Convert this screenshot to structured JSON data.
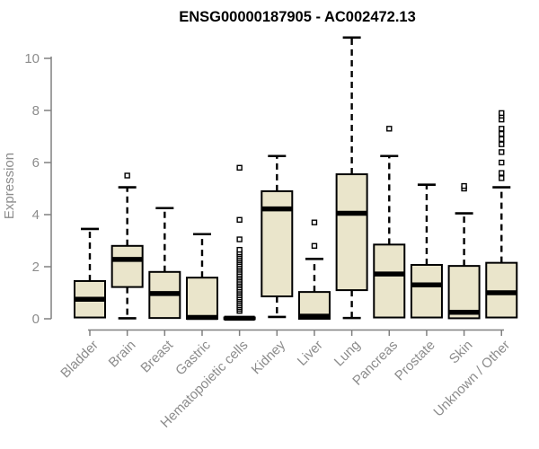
{
  "title": "ENSG00000187905 - AC002472.13",
  "colors": {
    "box_fill": "#eae5cb",
    "box_line": "#000000",
    "axis": "#808080",
    "axis_text": "#8c8c8c",
    "background": "#ffffff",
    "title_text": "#000000"
  },
  "chart_data": {
    "type": "boxplot",
    "title": "ENSG00000187905 - AC002472.13",
    "xlabel": "",
    "ylabel": "Expression",
    "ylim": [
      0,
      10.8
    ],
    "y_ticks": [
      0,
      2,
      4,
      6,
      8,
      10
    ],
    "grid": "off",
    "legend": "none",
    "categories": [
      "Bladder",
      "Brain",
      "Breast",
      "Gastric",
      "Hematopoietic cells",
      "Kidney",
      "Liver",
      "Lung",
      "Pancreas",
      "Prostate",
      "Skin",
      "Unknown / Other"
    ],
    "series": [
      {
        "name": "Bladder",
        "min": 0,
        "q1": 0.05,
        "median": 0.75,
        "q3": 1.45,
        "max": 3.45,
        "outliers": []
      },
      {
        "name": "Brain",
        "min": 0.02,
        "q1": 1.22,
        "median": 2.28,
        "q3": 2.8,
        "max": 5.05,
        "outliers": [
          5.5
        ]
      },
      {
        "name": "Breast",
        "min": 0,
        "q1": 0.03,
        "median": 0.97,
        "q3": 1.8,
        "max": 4.25,
        "outliers": []
      },
      {
        "name": "Gastric",
        "min": 0,
        "q1": 0,
        "median": 0.05,
        "q3": 1.58,
        "max": 3.25,
        "outliers": []
      },
      {
        "name": "Hematopoietic cells",
        "min": 0,
        "q1": 0,
        "median": 0.02,
        "q3": 0.05,
        "max": 0.08,
        "outliers": [
          0.3,
          0.38,
          0.45,
          0.52,
          0.6,
          0.68,
          0.75,
          0.82,
          0.9,
          0.98,
          1.05,
          1.12,
          1.2,
          1.28,
          1.35,
          1.42,
          1.5,
          1.58,
          1.65,
          1.72,
          1.8,
          1.88,
          1.95,
          2.02,
          2.1,
          2.18,
          2.25,
          2.32,
          2.4,
          2.48,
          2.55,
          2.65,
          3.05,
          3.8,
          5.8
        ]
      },
      {
        "name": "Kidney",
        "min": 0.07,
        "q1": 0.86,
        "median": 4.22,
        "q3": 4.9,
        "max": 6.25,
        "outliers": []
      },
      {
        "name": "Liver",
        "min": 0,
        "q1": 0,
        "median": 0.1,
        "q3": 1.03,
        "max": 2.3,
        "outliers": [
          2.8,
          3.7
        ]
      },
      {
        "name": "Lung",
        "min": 0.03,
        "q1": 1.1,
        "median": 4.05,
        "q3": 5.55,
        "max": 10.8,
        "outliers": []
      },
      {
        "name": "Pancreas",
        "min": 0,
        "q1": 0.05,
        "median": 1.72,
        "q3": 2.85,
        "max": 6.25,
        "outliers": [
          7.3
        ]
      },
      {
        "name": "Prostate",
        "min": 0,
        "q1": 0.05,
        "median": 1.3,
        "q3": 2.07,
        "max": 5.15,
        "outliers": []
      },
      {
        "name": "Skin",
        "min": 0,
        "q1": 0.02,
        "median": 0.25,
        "q3": 2.03,
        "max": 4.05,
        "outliers": [
          5.0,
          5.1
        ]
      },
      {
        "name": "Unknown / Other",
        "min": 0,
        "q1": 0.05,
        "median": 1.0,
        "q3": 2.15,
        "max": 5.05,
        "outliers": [
          5.4,
          5.6,
          6.0,
          6.4,
          6.7,
          6.9,
          7.1,
          7.3,
          7.65,
          7.8,
          7.9
        ]
      }
    ]
  }
}
